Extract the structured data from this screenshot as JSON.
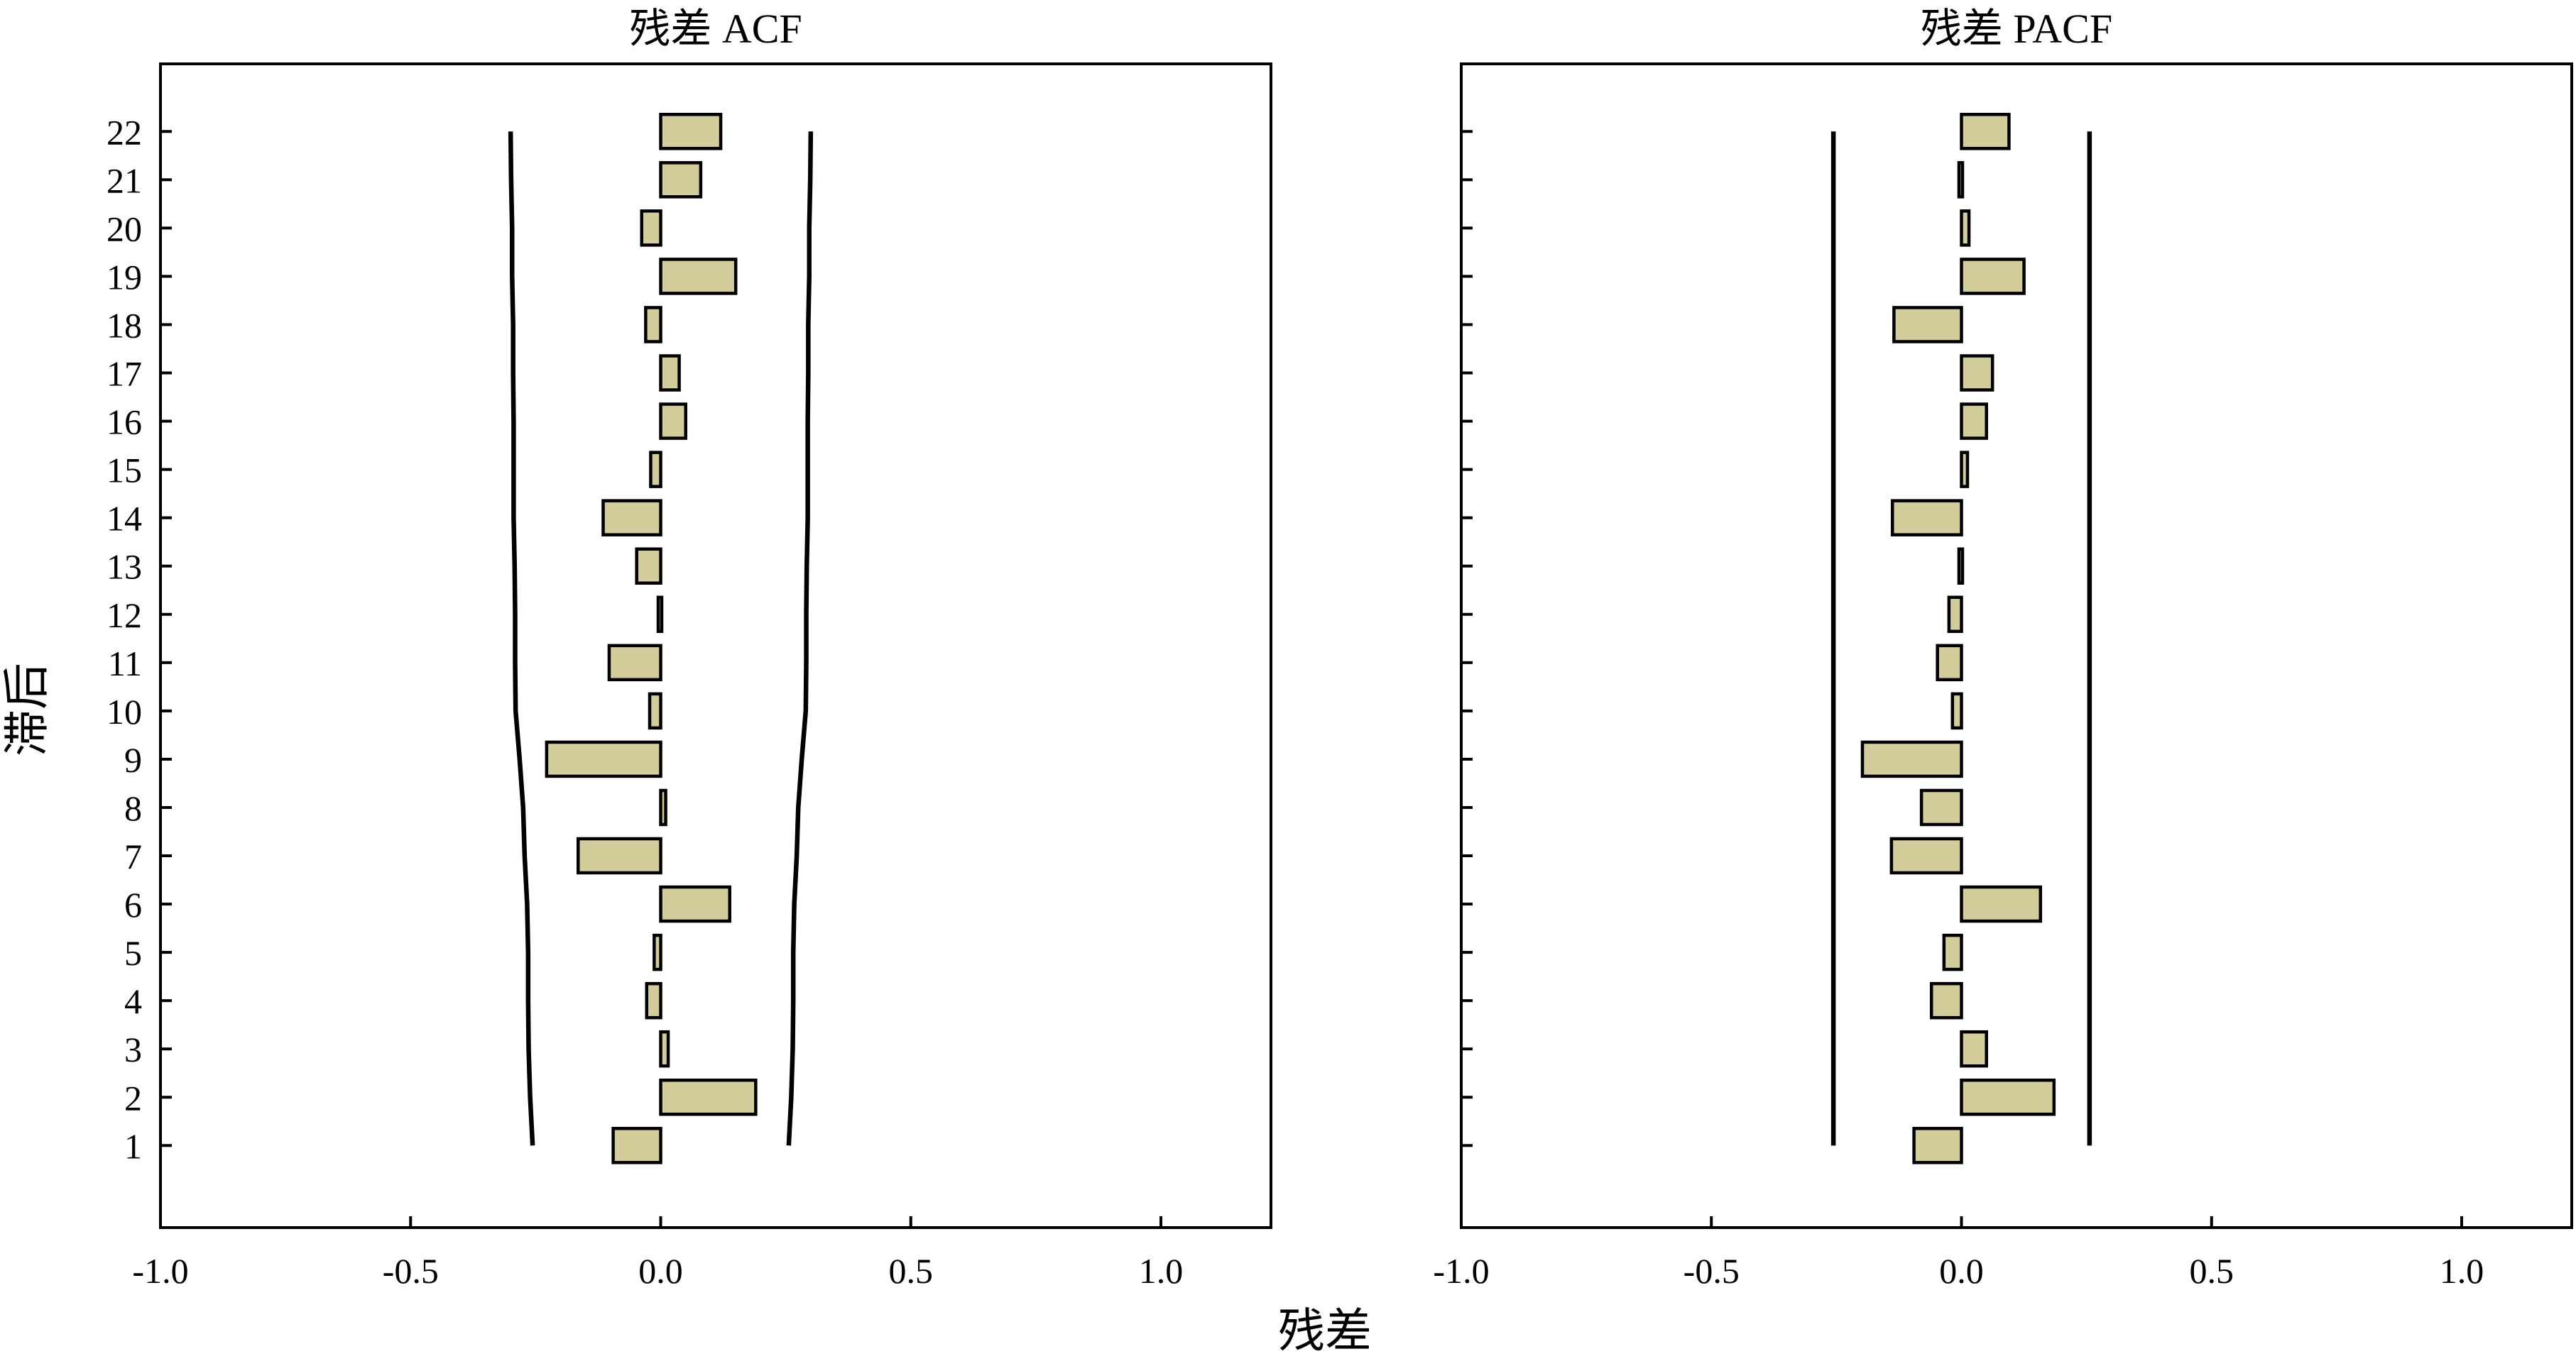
{
  "figure": {
    "xlabel": "残差",
    "ylabel": "滞后"
  },
  "chart_data": [
    {
      "type": "bar",
      "orientation": "horizontal",
      "title": "残差 ACF",
      "xlabel": "残差",
      "ylabel": "滞后",
      "xlim": [
        -1.0,
        1.22
      ],
      "ylim": [
        -0.7,
        23.4
      ],
      "xticks": [
        -1.0,
        -0.5,
        0.0,
        0.5,
        1.0
      ],
      "xtick_labels": [
        "-1.0",
        "-0.5",
        "0.0",
        "0.5",
        "1.0"
      ],
      "lags": [
        1,
        2,
        3,
        4,
        5,
        6,
        7,
        8,
        9,
        10,
        11,
        12,
        13,
        14,
        15,
        16,
        17,
        18,
        19,
        20,
        21,
        22
      ],
      "values": [
        -0.095,
        0.19,
        0.015,
        -0.028,
        -0.013,
        0.138,
        -0.165,
        0.01,
        -0.228,
        -0.022,
        -0.103,
        -0.005,
        -0.048,
        -0.115,
        -0.02,
        0.05,
        0.037,
        -0.03,
        0.15,
        -0.038,
        0.08,
        0.12
      ],
      "confidence_bounds": {
        "lower": [
          -0.256,
          -0.261,
          -0.264,
          -0.265,
          -0.265,
          -0.267,
          -0.272,
          -0.275,
          -0.282,
          -0.29,
          -0.291,
          -0.291,
          -0.292,
          -0.294,
          -0.294,
          -0.294,
          -0.295,
          -0.295,
          -0.297,
          -0.297,
          -0.299,
          -0.3
        ],
        "upper": [
          0.256,
          0.261,
          0.264,
          0.265,
          0.265,
          0.267,
          0.272,
          0.275,
          0.282,
          0.29,
          0.291,
          0.291,
          0.292,
          0.294,
          0.294,
          0.294,
          0.295,
          0.295,
          0.297,
          0.297,
          0.299,
          0.3
        ]
      },
      "grid": false,
      "colors": {
        "bar_fill": "#d3cd9c",
        "bar_edge": "#000000",
        "bounds": "#000000"
      }
    },
    {
      "type": "bar",
      "orientation": "horizontal",
      "title": "残差 PACF",
      "xlabel": "残差",
      "ylabel": "滞后",
      "xlim": [
        -1.0,
        1.22
      ],
      "ylim": [
        -0.7,
        23.4
      ],
      "xticks": [
        -1.0,
        -0.5,
        0.0,
        0.5,
        1.0
      ],
      "xtick_labels": [
        "-1.0",
        "-0.5",
        "0.0",
        "0.5",
        "1.0"
      ],
      "lags": [
        1,
        2,
        3,
        4,
        5,
        6,
        7,
        8,
        9,
        10,
        11,
        12,
        13,
        14,
        15,
        16,
        17,
        18,
        19,
        20,
        21,
        22
      ],
      "values": [
        -0.095,
        0.185,
        0.05,
        -0.06,
        -0.035,
        0.158,
        -0.14,
        -0.08,
        -0.198,
        -0.018,
        -0.048,
        -0.025,
        -0.005,
        -0.138,
        0.012,
        0.05,
        0.062,
        -0.135,
        0.125,
        0.015,
        -0.005,
        0.095
      ],
      "confidence_bounds": {
        "lower": [
          -0.256,
          -0.256,
          -0.256,
          -0.256,
          -0.256,
          -0.256,
          -0.256,
          -0.256,
          -0.256,
          -0.256,
          -0.256,
          -0.256,
          -0.256,
          -0.256,
          -0.256,
          -0.256,
          -0.256,
          -0.256,
          -0.256,
          -0.256,
          -0.256,
          -0.256
        ],
        "upper": [
          0.256,
          0.256,
          0.256,
          0.256,
          0.256,
          0.256,
          0.256,
          0.256,
          0.256,
          0.256,
          0.256,
          0.256,
          0.256,
          0.256,
          0.256,
          0.256,
          0.256,
          0.256,
          0.256,
          0.256,
          0.256,
          0.256
        ]
      },
      "grid": false,
      "colors": {
        "bar_fill": "#d3cd9c",
        "bar_edge": "#000000",
        "bounds": "#000000"
      }
    }
  ]
}
